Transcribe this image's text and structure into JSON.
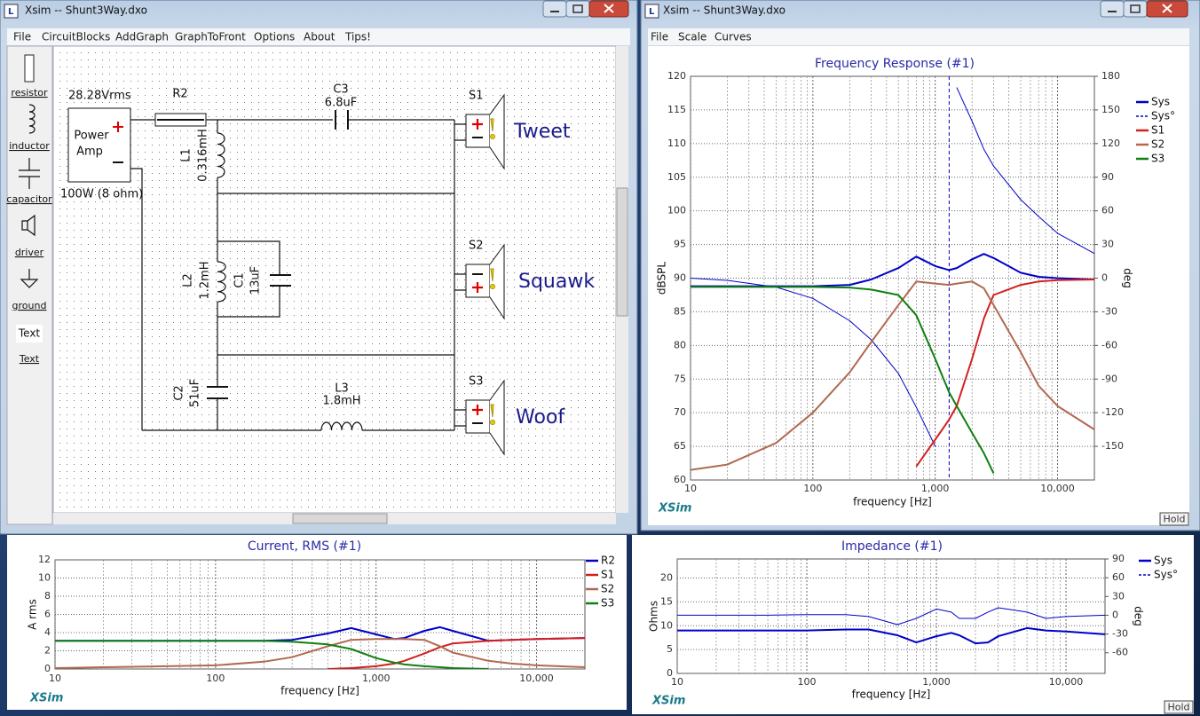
{
  "windows": [
    {
      "title": "Xsim -- Shunt3Way.dxo",
      "menu": [
        "File",
        "CircuitBlocks",
        "AddGraph",
        "GraphToFront",
        "Options",
        "About",
        "Tips!"
      ]
    },
    {
      "title": "Xsim -- Shunt3Way.dxo",
      "menu": [
        "File",
        "Scale",
        "Curves"
      ]
    }
  ],
  "toolbox": [
    "resistor",
    "inductor",
    "capacitor",
    "driver",
    "ground",
    "Text",
    "Text"
  ],
  "schematic": {
    "source": {
      "voltage": "28.28Vrms",
      "label": [
        "Power",
        "Amp"
      ],
      "rating": "100W (8 ohm)"
    },
    "parts": [
      {
        "name": "R2"
      },
      {
        "name": "C3",
        "value": "6.8uF"
      },
      {
        "name": "L1",
        "value": "0.316mH"
      },
      {
        "name": "L2",
        "value": "1.2mH"
      },
      {
        "name": "C1",
        "value": "13uF"
      },
      {
        "name": "C2",
        "value": "51uF"
      },
      {
        "name": "L3",
        "value": "1.8mH"
      }
    ],
    "drivers": [
      {
        "name": "S1",
        "label": "Tweet"
      },
      {
        "name": "S2",
        "label": "Squawk"
      },
      {
        "name": "S3",
        "label": "Woof"
      }
    ]
  },
  "chart_data": [
    {
      "type": "line",
      "title": "Frequency Response (#1)",
      "x_label": "frequency [Hz]",
      "y_label": "dBSPL",
      "y2_label": "deg",
      "watermark": "XSim",
      "button": "Hold",
      "log_x": true,
      "grid": true,
      "minor_grid": true,
      "legend": "right",
      "cursor_x": 1300,
      "x": [
        10,
        20,
        50,
        100,
        200,
        300,
        500,
        700,
        1000,
        1300,
        1500,
        2000,
        2500,
        3000,
        5000,
        7000,
        10000,
        20000
      ],
      "xlim": [
        10,
        20000
      ],
      "xticks": [
        10,
        100,
        {
          "value": 1000,
          "label": "1,000"
        },
        {
          "value": 10000,
          "label": "10,000"
        }
      ],
      "ylim": [
        60,
        120
      ],
      "yticks": [
        60,
        65,
        70,
        75,
        80,
        85,
        90,
        95,
        100,
        105,
        110,
        115,
        120
      ],
      "y2lim": [
        -180,
        180
      ],
      "y2ticks": [
        -150,
        -120,
        -90,
        -60,
        -30,
        0,
        30,
        60,
        90,
        120,
        150,
        180
      ],
      "series": [
        {
          "name": "Sys",
          "color": "#0000c8",
          "width": 2,
          "values": [
            88.8,
            88.8,
            88.8,
            88.8,
            89,
            89.8,
            91.5,
            93.2,
            91.8,
            91.2,
            91.5,
            92.8,
            93.6,
            93,
            90.8,
            90.2,
            90,
            89.8
          ]
        },
        {
          "name": "Sys°",
          "color": "#0000c8",
          "width": 1,
          "axis": "y2",
          "values": [
            0,
            -2,
            -8,
            -18,
            -38,
            -55,
            -85,
            -115,
            -150,
            null,
            170,
            140,
            115,
            100,
            70,
            55,
            40,
            22
          ]
        },
        {
          "name": "S1",
          "color": "#d42020",
          "width": 2,
          "values": [
            null,
            null,
            null,
            null,
            null,
            null,
            null,
            62,
            66,
            69,
            71,
            78,
            84,
            87.5,
            89,
            89.5,
            89.7,
            89.8
          ]
        },
        {
          "name": "S2",
          "color": "#b06a50",
          "width": 2,
          "values": [
            61.5,
            62.3,
            65.5,
            70,
            76,
            80.5,
            86,
            89.5,
            89.2,
            89,
            89.2,
            89.5,
            88.5,
            86,
            79,
            74,
            71,
            67.5
          ]
        },
        {
          "name": "S3",
          "color": "#108010",
          "width": 2,
          "values": [
            88.7,
            88.7,
            88.7,
            88.7,
            88.6,
            88.3,
            87.5,
            84.5,
            78,
            73,
            71,
            67,
            64,
            61,
            null,
            null,
            null,
            null
          ]
        }
      ]
    },
    {
      "type": "line",
      "title": "Current, RMS (#1)",
      "x_label": "frequency [Hz]",
      "y_label": "A rms",
      "watermark": "XSim",
      "log_x": true,
      "grid": true,
      "minor_grid": true,
      "legend": "right",
      "x": [
        10,
        20,
        50,
        100,
        200,
        300,
        500,
        700,
        1000,
        1300,
        1500,
        2000,
        2500,
        3000,
        5000,
        7000,
        10000,
        20000
      ],
      "xlim": [
        10,
        20000
      ],
      "xticks": [
        10,
        100,
        {
          "value": 1000,
          "label": "1,000"
        },
        {
          "value": 10000,
          "label": "10,000"
        }
      ],
      "ylim": [
        0,
        12
      ],
      "yticks": [
        0,
        2,
        4,
        6,
        8,
        10,
        12
      ],
      "series": [
        {
          "name": "R2",
          "color": "#0000c8",
          "width": 2,
          "values": [
            3.1,
            3.1,
            3.1,
            3.1,
            3.1,
            3.2,
            3.9,
            4.5,
            3.8,
            3.3,
            3.4,
            4.2,
            4.6,
            4.2,
            3.1,
            3.2,
            3.3,
            3.4
          ]
        },
        {
          "name": "S1",
          "color": "#d42020",
          "width": 2,
          "values": [
            null,
            null,
            null,
            null,
            null,
            null,
            0,
            0.1,
            0.3,
            0.6,
            0.9,
            1.7,
            2.4,
            2.8,
            3.1,
            3.2,
            3.3,
            3.4
          ]
        },
        {
          "name": "S2",
          "color": "#b06a50",
          "width": 2,
          "values": [
            0.1,
            0.2,
            0.3,
            0.4,
            0.8,
            1.3,
            2.5,
            3.2,
            3.3,
            3.3,
            3.3,
            3.2,
            2.5,
            1.8,
            0.9,
            0.6,
            0.4,
            0.2
          ]
        },
        {
          "name": "S3",
          "color": "#108010",
          "width": 2,
          "values": [
            3.1,
            3.1,
            3.1,
            3.1,
            3.1,
            3.0,
            2.7,
            2.2,
            1.2,
            0.7,
            0.5,
            0.3,
            0.2,
            0.1,
            0,
            null,
            null,
            null
          ]
        }
      ]
    },
    {
      "type": "line",
      "title": "Impedance (#1)",
      "x_label": "frequency [Hz]",
      "y_label": "Ohms",
      "y2_label": "deg",
      "watermark": "XSim",
      "button": "Hold",
      "log_x": true,
      "grid": true,
      "minor_grid": true,
      "legend": "right",
      "x": [
        10,
        20,
        50,
        100,
        200,
        300,
        500,
        700,
        1000,
        1300,
        1500,
        2000,
        2500,
        3000,
        5000,
        7000,
        10000,
        20000
      ],
      "xlim": [
        10,
        20000
      ],
      "xticks": [
        10,
        100,
        {
          "value": 1000,
          "label": "1,000"
        },
        {
          "value": 10000,
          "label": "10,000"
        }
      ],
      "ylim": [
        0,
        24
      ],
      "yticks": [
        0,
        5,
        10,
        15,
        20
      ],
      "y2lim": [
        -93,
        90
      ],
      "y2ticks": [
        -60,
        -30,
        0,
        30,
        60,
        90
      ],
      "series": [
        {
          "name": "Sys",
          "color": "#0000c8",
          "width": 2,
          "values": [
            9,
            9,
            9,
            9,
            9.2,
            9.2,
            8,
            6.5,
            7.8,
            8.5,
            8,
            6.3,
            6.5,
            7.8,
            9.5,
            9,
            8.8,
            8.2
          ]
        },
        {
          "name": "Sys°",
          "color": "#0000c8",
          "width": 1,
          "axis": "y2",
          "values": [
            0,
            0,
            0,
            1,
            1,
            -2,
            -15,
            -5,
            10,
            5,
            -5,
            -5,
            5,
            12,
            5,
            -5,
            -2,
            0
          ]
        }
      ]
    }
  ]
}
